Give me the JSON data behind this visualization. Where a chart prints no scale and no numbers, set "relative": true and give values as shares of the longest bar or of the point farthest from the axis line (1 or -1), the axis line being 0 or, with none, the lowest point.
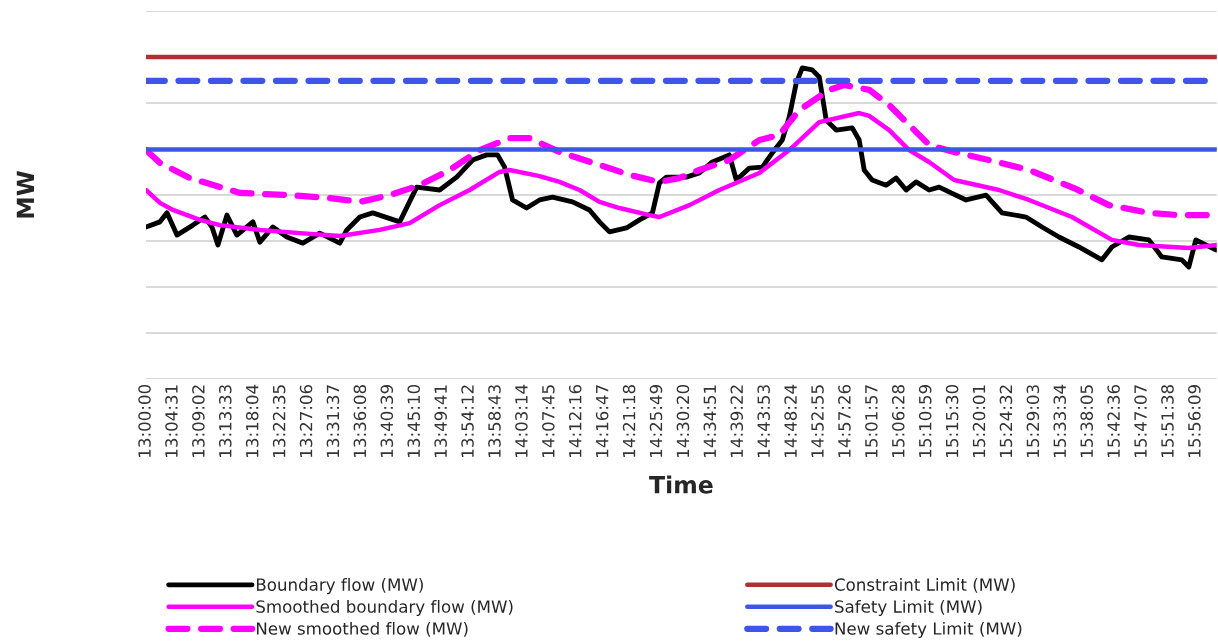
{
  "chart_data": {
    "type": "line",
    "relative": true,
    "xlabel": "Time",
    "ylabel": "MW",
    "xlim": [
      13.0,
      15.9944
    ],
    "xticks": [
      {
        "value": 13.0,
        "label": "13:00:00"
      },
      {
        "value": 13.0753,
        "label": "13:04:31"
      },
      {
        "value": 13.1506,
        "label": "13:09:02"
      },
      {
        "value": 13.2258,
        "label": "13:13:33"
      },
      {
        "value": 13.3011,
        "label": "13:18:04"
      },
      {
        "value": 13.3764,
        "label": "13:22:35"
      },
      {
        "value": 13.4517,
        "label": "13:27:06"
      },
      {
        "value": 13.5269,
        "label": "13:31:37"
      },
      {
        "value": 13.6022,
        "label": "13:36:08"
      },
      {
        "value": 13.6775,
        "label": "13:40:39"
      },
      {
        "value": 13.7528,
        "label": "13:45:10"
      },
      {
        "value": 13.8281,
        "label": "13:49:41"
      },
      {
        "value": 13.9033,
        "label": "13:54:12"
      },
      {
        "value": 13.9786,
        "label": "13:58:43"
      },
      {
        "value": 14.0539,
        "label": "14:03:14"
      },
      {
        "value": 14.1292,
        "label": "14:07:45"
      },
      {
        "value": 14.2044,
        "label": "14:12:16"
      },
      {
        "value": 14.2797,
        "label": "14:16:47"
      },
      {
        "value": 14.355,
        "label": "14:21:18"
      },
      {
        "value": 14.4303,
        "label": "14:25:49"
      },
      {
        "value": 14.5056,
        "label": "14:30:20"
      },
      {
        "value": 14.5808,
        "label": "14:34:51"
      },
      {
        "value": 14.6561,
        "label": "14:39:22"
      },
      {
        "value": 14.7314,
        "label": "14:43:53"
      },
      {
        "value": 14.8067,
        "label": "14:48:24"
      },
      {
        "value": 14.8819,
        "label": "14:52:55"
      },
      {
        "value": 14.9572,
        "label": "14:57:26"
      },
      {
        "value": 15.0325,
        "label": "15:01:57"
      },
      {
        "value": 15.1078,
        "label": "15:06:28"
      },
      {
        "value": 15.1831,
        "label": "15:10:59"
      },
      {
        "value": 15.2583,
        "label": "15:15:30"
      },
      {
        "value": 15.3336,
        "label": "15:20:01"
      },
      {
        "value": 15.4089,
        "label": "15:24:32"
      },
      {
        "value": 15.4842,
        "label": "15:29:03"
      },
      {
        "value": 15.5594,
        "label": "15:33:34"
      },
      {
        "value": 15.6347,
        "label": "15:38:05"
      },
      {
        "value": 15.71,
        "label": "15:42:36"
      },
      {
        "value": 15.7853,
        "label": "15:47:07"
      },
      {
        "value": 15.8606,
        "label": "15:51:38"
      },
      {
        "value": 15.9358,
        "label": "15:56:09"
      }
    ],
    "grid": "y",
    "legend": "bottom",
    "tick_labels": "x",
    "marker": "none",
    "series": [
      {
        "name": "Boundary flow (MW)",
        "color": "#000000",
        "line_style": "solid",
        "x": [
          13.0,
          13.0391,
          13.0587,
          13.0866,
          13.1313,
          13.1648,
          13.1844,
          13.2011,
          13.2263,
          13.2542,
          13.2989,
          13.3184,
          13.3547,
          13.3939,
          13.4385,
          13.486,
          13.5419,
          13.5615,
          13.5978,
          13.6341,
          13.7095,
          13.757,
          13.8212,
          13.8687,
          13.9134,
          13.9525,
          13.9832,
          14.0028,
          14.0251,
          14.0642,
          14.1006,
          14.1369,
          14.1927,
          14.2402,
          14.2682,
          14.2961,
          14.3436,
          14.3799,
          14.4162,
          14.4358,
          14.4553,
          14.5112,
          14.5475,
          14.5838,
          14.6313,
          14.6508,
          14.6872,
          14.7235,
          14.7514,
          14.7793,
          14.7989,
          14.8184,
          14.8352,
          14.8631,
          14.8827,
          14.9022,
          14.9302,
          14.9749,
          14.9944,
          15.0084,
          15.0307,
          15.0698,
          15.0978,
          15.1257,
          15.1536,
          15.1899,
          15.2179,
          15.2933,
          15.3492,
          15.3939,
          15.4609,
          15.5056,
          15.5531,
          15.6089,
          15.6732,
          15.7011,
          15.7486,
          15.8045,
          15.8408,
          15.8967,
          15.9162,
          15.9358,
          15.9916
        ],
        "values": [
          0.472,
          0.488,
          0.516,
          0.447,
          0.478,
          0.503,
          0.472,
          0.416,
          0.509,
          0.447,
          0.488,
          0.425,
          0.472,
          0.441,
          0.422,
          0.453,
          0.422,
          0.463,
          0.503,
          0.516,
          0.488,
          0.596,
          0.587,
          0.627,
          0.68,
          0.696,
          0.696,
          0.658,
          0.556,
          0.531,
          0.556,
          0.565,
          0.55,
          0.525,
          0.488,
          0.457,
          0.469,
          0.494,
          0.516,
          0.609,
          0.627,
          0.627,
          0.64,
          0.674,
          0.696,
          0.618,
          0.655,
          0.658,
          0.702,
          0.742,
          0.814,
          0.919,
          0.966,
          0.96,
          0.938,
          0.804,
          0.773,
          0.78,
          0.742,
          0.649,
          0.618,
          0.602,
          0.624,
          0.587,
          0.612,
          0.587,
          0.596,
          0.556,
          0.571,
          0.516,
          0.503,
          0.472,
          0.441,
          0.41,
          0.37,
          0.41,
          0.441,
          0.432,
          0.379,
          0.37,
          0.348,
          0.432,
          0.401
        ]
      },
      {
        "name": "Smoothed boundary flow (MW)",
        "color": "#ff00ff",
        "line_style": "solid",
        "x": [
          13.0,
          13.0391,
          13.0754,
          13.1508,
          13.2067,
          13.3184,
          13.4302,
          13.5419,
          13.6536,
          13.7374,
          13.8212,
          13.905,
          13.9888,
          14.0168,
          14.1006,
          14.1564,
          14.2123,
          14.2682,
          14.324,
          14.4078,
          14.4358,
          14.5196,
          14.6034,
          14.7151,
          14.7989,
          14.8827,
          14.9944,
          15.0224,
          15.0782,
          15.1341,
          15.1899,
          15.2598,
          15.3855,
          15.4693,
          15.5894,
          15.7011,
          15.7765,
          15.9162,
          15.9944
        ],
        "values": [
          0.587,
          0.547,
          0.525,
          0.494,
          0.478,
          0.463,
          0.453,
          0.444,
          0.463,
          0.484,
          0.54,
          0.587,
          0.643,
          0.649,
          0.63,
          0.612,
          0.587,
          0.55,
          0.531,
          0.509,
          0.503,
          0.54,
          0.587,
          0.64,
          0.711,
          0.798,
          0.826,
          0.817,
          0.773,
          0.711,
          0.674,
          0.618,
          0.587,
          0.556,
          0.503,
          0.432,
          0.416,
          0.407,
          0.416
        ]
      },
      {
        "name": "New smoothed flow (MW)",
        "color": "#ff00ff",
        "line_style": "dashed",
        "x": [
          13.0,
          13.0391,
          13.1229,
          13.2626,
          13.4022,
          13.514,
          13.5978,
          13.6816,
          13.7654,
          13.8492,
          13.933,
          14.0168,
          14.0726,
          14.1564,
          14.2682,
          14.352,
          14.4358,
          14.4916,
          14.5475,
          14.6313,
          14.7151,
          14.771,
          14.8268,
          14.9106,
          14.9525,
          15.0224,
          15.0782,
          15.1341,
          15.1899,
          15.2598,
          15.3575,
          15.4693,
          15.595,
          15.6927,
          15.8045,
          15.8883,
          15.9944
        ],
        "values": [
          0.711,
          0.671,
          0.624,
          0.578,
          0.571,
          0.562,
          0.55,
          0.571,
          0.602,
          0.649,
          0.711,
          0.748,
          0.748,
          0.705,
          0.665,
          0.634,
          0.612,
          0.624,
          0.649,
          0.68,
          0.742,
          0.758,
          0.835,
          0.898,
          0.913,
          0.898,
          0.851,
          0.789,
          0.727,
          0.705,
          0.68,
          0.649,
          0.593,
          0.54,
          0.516,
          0.509,
          0.509
        ]
      },
      {
        "name": "Constraint Limit (MW)",
        "color": "#b03030",
        "line_style": "solid",
        "x": [
          13.0,
          15.9944
        ],
        "values": [
          1.0,
          1.0
        ]
      },
      {
        "name": "Safety Limit (MW)",
        "color": "#3d55e8",
        "line_style": "solid",
        "x": [
          13.0,
          15.9944
        ],
        "values": [
          0.713,
          0.713
        ]
      },
      {
        "name": "New safety Limit (MW)",
        "color": "#3d55e8",
        "line_style": "dashed",
        "x": [
          13.0,
          15.9944
        ],
        "values": [
          0.926,
          0.926
        ]
      }
    ]
  }
}
